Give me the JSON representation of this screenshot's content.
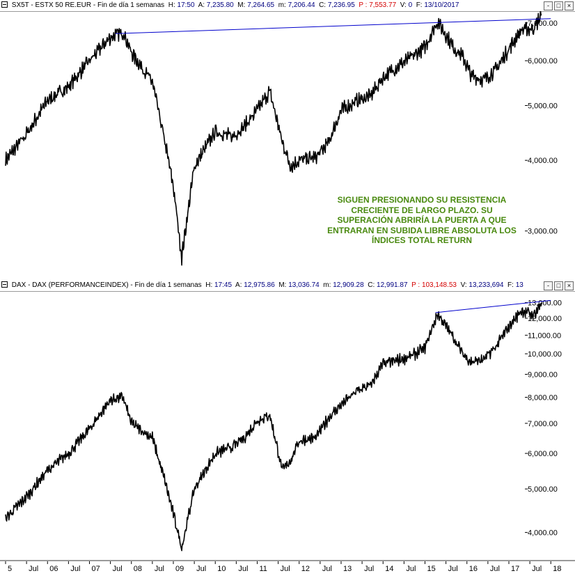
{
  "top_panel": {
    "symbol": "SX5T",
    "description": "ESTX 50 RE.EUR",
    "period": "Fin de día 1 semanas",
    "h_label": "H:",
    "h_value": "17:50",
    "a_label": "A:",
    "a_value": "7,235.80",
    "max_label": "M:",
    "max_value": "7,264.65",
    "min_label": "m:",
    "min_value": "7,206.44",
    "c_label": "C:",
    "c_value": "7,236.95",
    "p_label": "P",
    "p_value": "7,553.77",
    "vol_label": "V:",
    "vol_value": "0",
    "f_label": "F:",
    "f_value": "13/10/2017",
    "y_ticks": [
      "7,000.00",
      "6,000.00",
      "5,000.00",
      "4,000.00",
      "3,000.00"
    ]
  },
  "bottom_panel": {
    "symbol": "DAX",
    "description": "DAX (PERFORMANCEINDEX)",
    "period": "Fin de día 1 semanas",
    "h_label": "H:",
    "h_value": "17:45",
    "a_label": "A:",
    "a_value": "12,975.86",
    "max_label": "M:",
    "max_value": "13,036.74",
    "min_label": "m:",
    "min_value": "12,909.28",
    "c_label": "C:",
    "c_value": "12,991.87",
    "p_label": "P",
    "p_value": "103,148.53",
    "vol_label": "V:",
    "vol_value": "13,233,694",
    "f_label": "F:",
    "f_value": "13",
    "y_ticks": [
      "13,000.00",
      "12,000.00",
      "11,000.00",
      "10,000.00",
      "9,000.00",
      "8,000.00",
      "7,000.00",
      "6,000.00",
      "5,000.00",
      "4,000.00"
    ]
  },
  "annotation": "SIGUEN PRESIONANDO SU RESISTENCIA CRECIENTE DE LARGO PLAZO. SU SUPERACIÓN ABRIRÍA LA PUERTA A QUE ENTRARAN EN SUBIDA LIBRE ABSOLUTA LOS ÍNDICES TOTAL RETURN",
  "window_buttons": [
    "-",
    "□",
    "×"
  ],
  "x_axis_labels": [
    "5",
    "Jul",
    "06",
    "Jul",
    "07",
    "Jul",
    "08",
    "Jul",
    "09",
    "Jul",
    "10",
    "Jul",
    "11",
    "Jul",
    "12",
    "Jul",
    "13",
    "Jul",
    "14",
    "Jul",
    "15",
    "Jul",
    "16",
    "Jul",
    "17",
    "Jul",
    "18"
  ],
  "colors": {
    "price": "#000000",
    "trendline": "#0000cc",
    "annotation": "#4a8a10",
    "header_value": "#000080",
    "header_p": "#d40000"
  },
  "chart_data": [
    {
      "type": "line",
      "title": "SX5T - ESTX 50 RE.EUR",
      "y_scale": "log",
      "ylim": [
        2500,
        7300
      ],
      "x": [
        2005.0,
        2005.5,
        2006.0,
        2006.5,
        2007.0,
        2007.5,
        2007.8,
        2008.0,
        2008.5,
        2008.8,
        2009.0,
        2009.2,
        2009.5,
        2010.0,
        2010.4,
        2010.7,
        2011.0,
        2011.3,
        2011.6,
        2011.8,
        2012.0,
        2012.4,
        2012.7,
        2013.0,
        2013.4,
        2013.7,
        2014.0,
        2014.4,
        2014.7,
        2015.0,
        2015.3,
        2015.7,
        2015.9,
        2016.1,
        2016.4,
        2016.7,
        2017.0,
        2017.3,
        2017.6,
        2017.78
      ],
      "values": [
        4000,
        4450,
        5100,
        5400,
        6000,
        6600,
        6750,
        6200,
        5500,
        4300,
        3600,
        2700,
        3900,
        4500,
        4400,
        4600,
        4900,
        5300,
        4300,
        3900,
        4000,
        4050,
        4300,
        4900,
        5100,
        5200,
        5600,
        5900,
        6100,
        6350,
        7050,
        6300,
        6100,
        5650,
        5550,
        5800,
        6300,
        6800,
        6850,
        7236.95
      ],
      "series": [
        {
          "name": "trendline",
          "x": [
            2007.62,
            2018.0
          ],
          "values": [
            6700,
            7120
          ]
        }
      ]
    },
    {
      "type": "line",
      "title": "DAX - DAX (PERFORMANCEINDEX)",
      "y_scale": "log",
      "ylim": [
        3500,
        13500
      ],
      "x": [
        2005.0,
        2005.5,
        2006.0,
        2006.5,
        2007.0,
        2007.5,
        2007.8,
        2008.0,
        2008.5,
        2008.8,
        2009.0,
        2009.2,
        2009.5,
        2010.0,
        2010.4,
        2010.7,
        2011.0,
        2011.3,
        2011.6,
        2011.8,
        2012.0,
        2012.4,
        2012.7,
        2013.0,
        2013.4,
        2013.7,
        2014.0,
        2014.4,
        2014.7,
        2015.0,
        2015.3,
        2015.7,
        2015.9,
        2016.1,
        2016.4,
        2016.7,
        2017.0,
        2017.3,
        2017.6,
        2017.78
      ],
      "values": [
        4300,
        4800,
        5500,
        6000,
        6800,
        7900,
        8000,
        7000,
        6500,
        5200,
        4400,
        3700,
        5000,
        6000,
        6200,
        6500,
        7100,
        7300,
        5500,
        5800,
        6400,
        6500,
        7200,
        7700,
        8300,
        8500,
        9500,
        9700,
        9900,
        10300,
        12300,
        10800,
        10000,
        9600,
        9700,
        10400,
        11500,
        12500,
        12200,
        12991.87
      ],
      "series": [
        {
          "name": "trendline",
          "x": [
            2015.25,
            2018.0
          ],
          "values": [
            12350,
            13150
          ]
        }
      ]
    }
  ]
}
